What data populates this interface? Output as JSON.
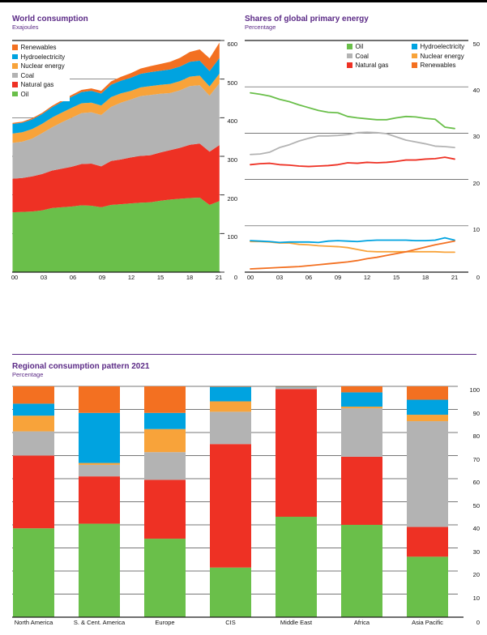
{
  "page": {
    "top_bar_color": "#000000",
    "divider_color": "#5b2a86"
  },
  "colors": {
    "Oil": "#6abf4a",
    "Natural gas": "#ee3124",
    "Coal": "#b3b3b3",
    "Nuclear energy": "#f8a33a",
    "Hydroelectricity": "#00a3e0",
    "Renewables": "#f37021",
    "title_purple": "#5b2a86",
    "axis": "#1a1a1a",
    "gridline": "#4a4a4a"
  },
  "chart_data": [
    {
      "type": "area",
      "title": "World consumption",
      "subtitle": "Exajoules",
      "x": [
        2000,
        2001,
        2002,
        2003,
        2004,
        2005,
        2006,
        2007,
        2008,
        2009,
        2010,
        2011,
        2012,
        2013,
        2014,
        2015,
        2016,
        2017,
        2018,
        2019,
        2020,
        2021
      ],
      "xticks": [
        "00",
        "03",
        "06",
        "09",
        "12",
        "15",
        "18",
        "21"
      ],
      "yticks": [
        600,
        500,
        400,
        300,
        200,
        100,
        0
      ],
      "ylim": [
        0,
        600
      ],
      "grid": true,
      "legend_position": "top-left",
      "legend": [
        "Renewables",
        "Hydroelectricity",
        "Nuclear energy",
        "Coal",
        "Natural gas",
        "Oil"
      ],
      "series": [
        {
          "name": "Oil",
          "values": [
            155,
            156,
            157,
            160,
            166,
            168,
            170,
            173,
            172,
            168,
            174,
            176,
            178,
            180,
            181,
            185,
            188,
            190,
            192,
            193,
            174,
            184
          ]
        },
        {
          "name": "Natural gas",
          "values": [
            87,
            88,
            91,
            94,
            97,
            100,
            103,
            107,
            109,
            106,
            114,
            116,
            119,
            121,
            122,
            125,
            128,
            132,
            138,
            140,
            138,
            145
          ]
        },
        {
          "name": "Coal",
          "values": [
            93,
            94,
            98,
            106,
            112,
            120,
            127,
            132,
            133,
            133,
            140,
            147,
            150,
            155,
            156,
            152,
            148,
            149,
            152,
            151,
            145,
            160
          ]
        },
        {
          "name": "Nuclear energy",
          "values": [
            24,
            24.5,
            24.8,
            24.3,
            25.4,
            25.3,
            25.6,
            25.4,
            25.1,
            24.7,
            25.3,
            24.2,
            22.4,
            22.6,
            23,
            23.2,
            23.6,
            23.9,
            24.4,
            24.9,
            23.9,
            25.3
          ]
        },
        {
          "name": "Hydroelectricity",
          "values": [
            25,
            24.5,
            25,
            25,
            26.5,
            27.5,
            28.5,
            29,
            30.5,
            30.8,
            32.2,
            32.6,
            34,
            35.1,
            36.1,
            36.4,
            37.5,
            37.7,
            38.4,
            38.9,
            40,
            40.3
          ]
        },
        {
          "name": "Renewables",
          "values": [
            2.5,
            2.7,
            3,
            3.3,
            3.7,
            4.2,
            4.8,
            5.5,
            6.4,
            7.2,
            8.5,
            10,
            11.8,
            13.6,
            15.5,
            17.5,
            19.7,
            22.5,
            25.5,
            29,
            33,
            40
          ]
        }
      ]
    },
    {
      "type": "line",
      "title": "Shares of global primary energy",
      "subtitle": "Percentage",
      "x": [
        2000,
        2001,
        2002,
        2003,
        2004,
        2005,
        2006,
        2007,
        2008,
        2009,
        2010,
        2011,
        2012,
        2013,
        2014,
        2015,
        2016,
        2017,
        2018,
        2019,
        2020,
        2021
      ],
      "xticks": [
        "00",
        "03",
        "06",
        "09",
        "12",
        "15",
        "18",
        "21"
      ],
      "yticks": [
        50,
        40,
        30,
        20,
        10,
        0
      ],
      "ylim": [
        0,
        50
      ],
      "grid": true,
      "legend_position": "top-right",
      "legend_col1": [
        "Oil",
        "Coal",
        "Natural gas"
      ],
      "legend_col2": [
        "Hydroelectricity",
        "Nuclear energy",
        "Renewables"
      ],
      "series": [
        {
          "name": "Oil",
          "values": [
            38.7,
            38.4,
            38.0,
            37.3,
            36.8,
            36.1,
            35.5,
            34.9,
            34.5,
            34.4,
            33.6,
            33.3,
            33.1,
            32.9,
            32.9,
            33.3,
            33.6,
            33.5,
            33.2,
            33.0,
            31.3,
            31.0
          ]
        },
        {
          "name": "Coal",
          "values": [
            25.4,
            25.5,
            25.9,
            26.9,
            27.5,
            28.3,
            28.9,
            29.4,
            29.4,
            29.5,
            29.7,
            30.1,
            30.2,
            30.1,
            29.9,
            29.2,
            28.5,
            28.1,
            27.7,
            27.2,
            27.1,
            26.9
          ]
        },
        {
          "name": "Natural gas",
          "values": [
            23.2,
            23.4,
            23.5,
            23.2,
            23.1,
            22.9,
            22.8,
            22.9,
            23.0,
            23.2,
            23.6,
            23.5,
            23.7,
            23.6,
            23.7,
            23.9,
            24.2,
            24.2,
            24.4,
            24.5,
            24.8,
            24.4
          ]
        },
        {
          "name": "Nuclear energy",
          "values": [
            6.6,
            6.6,
            6.5,
            6.3,
            6.3,
            6.0,
            5.9,
            5.7,
            5.6,
            5.5,
            5.3,
            4.9,
            4.5,
            4.4,
            4.4,
            4.4,
            4.4,
            4.4,
            4.4,
            4.4,
            4.3,
            4.3
          ]
        },
        {
          "name": "Hydroelectricity",
          "values": [
            6.8,
            6.7,
            6.6,
            6.4,
            6.5,
            6.5,
            6.5,
            6.4,
            6.7,
            6.8,
            6.7,
            6.6,
            6.8,
            6.9,
            6.9,
            6.9,
            6.9,
            6.8,
            6.8,
            6.9,
            7.4,
            6.9
          ]
        },
        {
          "name": "Renewables",
          "values": [
            0.7,
            0.8,
            0.9,
            1.0,
            1.1,
            1.2,
            1.4,
            1.6,
            1.8,
            2.0,
            2.2,
            2.5,
            2.9,
            3.2,
            3.6,
            4.0,
            4.4,
            4.9,
            5.4,
            5.9,
            6.3,
            6.7
          ]
        }
      ]
    },
    {
      "type": "bar",
      "title": "Regional consumption pattern 2021",
      "subtitle": "Percentage",
      "categories": [
        "North America",
        "S. & Cent. America",
        "Europe",
        "CIS",
        "Middle East",
        "Africa",
        "Asia Pacific"
      ],
      "yticks": [
        100,
        90,
        80,
        70,
        60,
        50,
        40,
        30,
        20,
        10,
        0
      ],
      "ylim": [
        0,
        100
      ],
      "grid": true,
      "stacked": true,
      "series": [
        {
          "name": "Oil",
          "values": [
            38.5,
            40.5,
            34.0,
            21.5,
            43.5,
            40.0,
            26.2
          ]
        },
        {
          "name": "Natural gas",
          "values": [
            31.5,
            20.5,
            25.5,
            53.5,
            55.3,
            29.5,
            12.9
          ]
        },
        {
          "name": "Coal",
          "values": [
            10.5,
            5.0,
            12.0,
            14.0,
            0.8,
            21.0,
            45.8
          ]
        },
        {
          "name": "Nuclear energy",
          "values": [
            6.8,
            0.8,
            10.0,
            4.5,
            0.0,
            0.7,
            2.8
          ]
        },
        {
          "name": "Hydroelectricity",
          "values": [
            5.2,
            21.7,
            7.0,
            6.3,
            0.2,
            6.2,
            6.5
          ]
        },
        {
          "name": "Renewables",
          "values": [
            7.5,
            11.5,
            11.5,
            0.2,
            0.2,
            2.6,
            5.8
          ]
        }
      ]
    }
  ]
}
